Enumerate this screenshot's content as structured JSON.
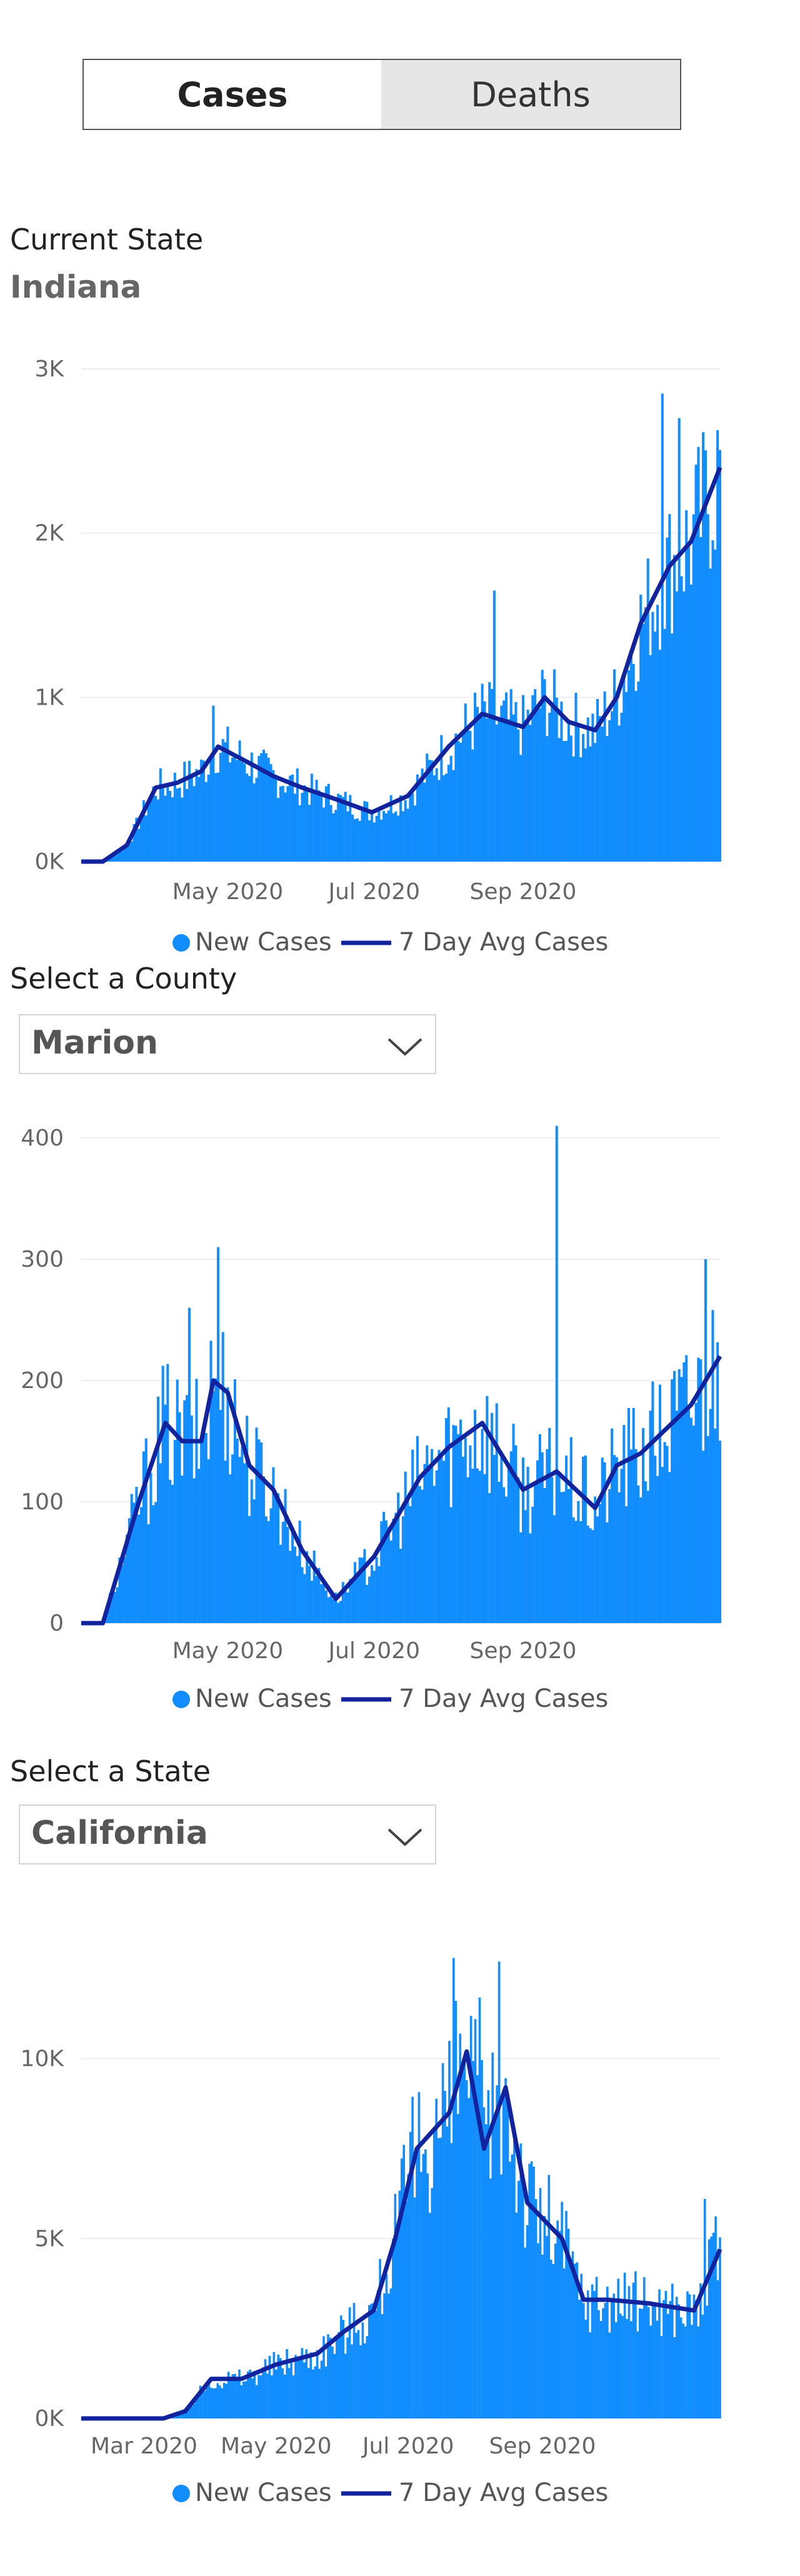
{
  "toggle": {
    "cases_label": "Cases",
    "deaths_label": "Deaths"
  },
  "current_state": {
    "label": "Current State",
    "value": "Indiana"
  },
  "county_select": {
    "label": "Select a County",
    "value": "Marion"
  },
  "state_select": {
    "label": "Select a State",
    "value": "California"
  },
  "colors": {
    "bars": "#118DFF",
    "line": "#12239E",
    "grid": "#eeeeee",
    "tick": "#666666"
  },
  "chart_data": [
    {
      "type": "bar",
      "series": [
        {
          "name": "New Cases",
          "kind": "bar"
        },
        {
          "name": "7 Day Avg Cases",
          "kind": "line"
        }
      ],
      "x_range": [
        "2020-03-01",
        "2020-11-22"
      ],
      "x_ticks": [
        "May 2020",
        "Jul 2020",
        "Sep 2020"
      ],
      "y_ticks": [
        "0K",
        "1K",
        "2K",
        "3K"
      ],
      "ylim": [
        0,
        3000
      ],
      "anchors_avg": [
        [
          "2020-03-01",
          0
        ],
        [
          "2020-03-10",
          0
        ],
        [
          "2020-03-20",
          100
        ],
        [
          "2020-04-01",
          450
        ],
        [
          "2020-04-10",
          480
        ],
        [
          "2020-04-20",
          550
        ],
        [
          "2020-04-27",
          700
        ],
        [
          "2020-05-10",
          600
        ],
        [
          "2020-05-20",
          520
        ],
        [
          "2020-06-01",
          450
        ],
        [
          "2020-06-15",
          380
        ],
        [
          "2020-06-30",
          300
        ],
        [
          "2020-07-15",
          400
        ],
        [
          "2020-08-01",
          700
        ],
        [
          "2020-08-15",
          900
        ],
        [
          "2020-09-01",
          820
        ],
        [
          "2020-09-10",
          1000
        ],
        [
          "2020-09-20",
          850
        ],
        [
          "2020-10-01",
          800
        ],
        [
          "2020-10-10",
          1000
        ],
        [
          "2020-10-20",
          1450
        ],
        [
          "2020-11-01",
          1800
        ],
        [
          "2020-11-10",
          1950
        ],
        [
          "2020-11-22",
          2400
        ]
      ],
      "peaks": [
        [
          "2020-10-29",
          2850
        ],
        [
          "2020-11-05",
          2700
        ],
        [
          "2020-08-20",
          1650
        ],
        [
          "2020-04-25",
          950
        ]
      ],
      "noise": 0.25
    },
    {
      "type": "bar",
      "series": [
        {
          "name": "New Cases",
          "kind": "bar"
        },
        {
          "name": "7 Day Avg Cases",
          "kind": "line"
        }
      ],
      "x_range": [
        "2020-03-01",
        "2020-11-22"
      ],
      "x_ticks": [
        "May 2020",
        "Jul 2020",
        "Sep 2020"
      ],
      "y_ticks": [
        "0",
        "100",
        "200",
        "300",
        "400"
      ],
      "ylim": [
        0,
        400
      ],
      "anchors_avg": [
        [
          "2020-03-01",
          0
        ],
        [
          "2020-03-10",
          0
        ],
        [
          "2020-03-25",
          100
        ],
        [
          "2020-04-05",
          165
        ],
        [
          "2020-04-12",
          150
        ],
        [
          "2020-04-20",
          150
        ],
        [
          "2020-04-25",
          200
        ],
        [
          "2020-05-01",
          190
        ],
        [
          "2020-05-10",
          130
        ],
        [
          "2020-05-20",
          110
        ],
        [
          "2020-06-01",
          60
        ],
        [
          "2020-06-15",
          20
        ],
        [
          "2020-07-01",
          55
        ],
        [
          "2020-07-20",
          120
        ],
        [
          "2020-08-01",
          145
        ],
        [
          "2020-08-15",
          165
        ],
        [
          "2020-09-01",
          110
        ],
        [
          "2020-09-15",
          125
        ],
        [
          "2020-10-01",
          95
        ],
        [
          "2020-10-10",
          130
        ],
        [
          "2020-10-20",
          140
        ],
        [
          "2020-11-10",
          180
        ],
        [
          "2020-11-22",
          220
        ]
      ],
      "peaks": [
        [
          "2020-09-15",
          410
        ],
        [
          "2020-04-27",
          310
        ],
        [
          "2020-11-16",
          300
        ],
        [
          "2020-04-15",
          260
        ]
      ],
      "noise": 0.35
    },
    {
      "type": "bar",
      "series": [
        {
          "name": "New Cases",
          "kind": "bar"
        },
        {
          "name": "7 Day Avg Cases",
          "kind": "line"
        }
      ],
      "x_range": [
        "2020-02-01",
        "2020-11-22"
      ],
      "x_ticks": [
        "Mar 2020",
        "May 2020",
        "Jul 2020",
        "Sep 2020"
      ],
      "y_ticks": [
        "0K",
        "5K",
        "10K"
      ],
      "ylim": [
        0,
        13000
      ],
      "anchors_avg": [
        [
          "2020-02-01",
          0
        ],
        [
          "2020-03-10",
          0
        ],
        [
          "2020-03-20",
          200
        ],
        [
          "2020-04-01",
          1100
        ],
        [
          "2020-04-15",
          1100
        ],
        [
          "2020-05-01",
          1500
        ],
        [
          "2020-05-20",
          1800
        ],
        [
          "2020-06-01",
          2400
        ],
        [
          "2020-06-15",
          3000
        ],
        [
          "2020-06-25",
          5000
        ],
        [
          "2020-07-05",
          7500
        ],
        [
          "2020-07-20",
          8500
        ],
        [
          "2020-07-28",
          10200
        ],
        [
          "2020-08-05",
          7500
        ],
        [
          "2020-08-15",
          9200
        ],
        [
          "2020-08-25",
          6000
        ],
        [
          "2020-09-10",
          5000
        ],
        [
          "2020-09-20",
          3300
        ],
        [
          "2020-10-01",
          3300
        ],
        [
          "2020-10-20",
          3200
        ],
        [
          "2020-11-10",
          3000
        ],
        [
          "2020-11-22",
          4700
        ]
      ],
      "peaks": [
        [
          "2020-07-22",
          12800
        ],
        [
          "2020-08-12",
          12700
        ],
        [
          "2020-11-15",
          6100
        ],
        [
          "2020-08-03",
          11700
        ]
      ],
      "noise": 0.28
    }
  ],
  "legend": {
    "bars": "New Cases",
    "line": "7 Day Avg Cases"
  }
}
